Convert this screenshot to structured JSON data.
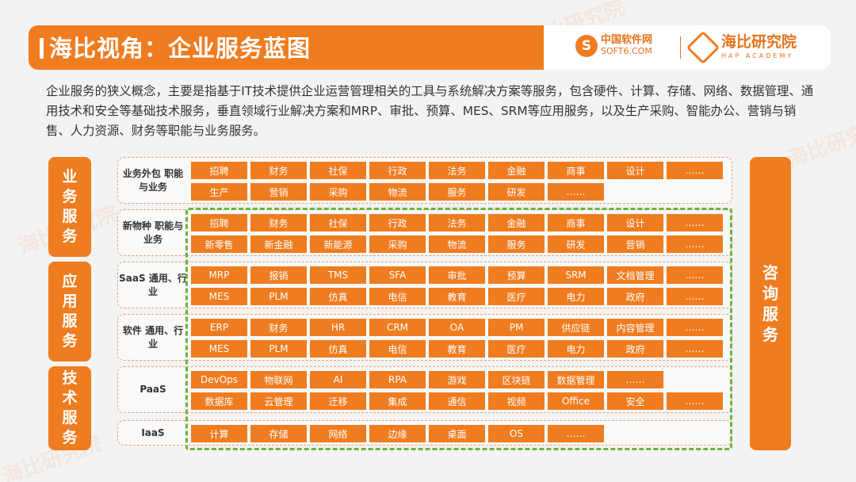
{
  "header": {
    "title": "海比视角：企业服务蓝图",
    "logo1_cn": "中国软件网",
    "logo1_en": "SOFT6.COM",
    "logo2_cn": "海比研究院",
    "logo2_en": "HAP ACADEMY"
  },
  "watermark": "海比研究院",
  "intro": "企业服务的狭义概念，主要是指基于IT技术提供企业运营管理相关的工具与系统解决方案等服务，包含硬件、计算、存储、网络、数据管理、通用技术和安全等基础技术服务，垂直领域行业解决方案和MRP、审批、预算、MES、SRM等应用服务，以及生产采购、智能办公、营销与销售、人力资源、财务等职能与业务服务。",
  "sidebars": [
    {
      "label": "业务服务"
    },
    {
      "label": "应用服务"
    },
    {
      "label": "技术服务"
    }
  ],
  "right_sidebar": "咨询服务",
  "rows": [
    {
      "label": "业务外包 职能与业务",
      "lines": [
        [
          "招聘",
          "财务",
          "社保",
          "行政",
          "法务",
          "金融",
          "商事",
          "设计",
          "……"
        ],
        [
          "生产",
          "营销",
          "采购",
          "物流",
          "服务",
          "研发",
          "……"
        ]
      ]
    },
    {
      "label": "新物种 职能与业务",
      "lines": [
        [
          "招聘",
          "财务",
          "社保",
          "行政",
          "法务",
          "金融",
          "商事",
          "设计",
          "……"
        ],
        [
          "新零售",
          "新金融",
          "新能源",
          "采购",
          "物流",
          "服务",
          "研发",
          "营销",
          "……"
        ]
      ]
    },
    {
      "label": "SaaS 通用、行业",
      "lines": [
        [
          "MRP",
          "报销",
          "TMS",
          "SFA",
          "审批",
          "预算",
          "SRM",
          "文档管理",
          "……"
        ],
        [
          "MES",
          "PLM",
          "仿真",
          "电信",
          "教育",
          "医疗",
          "电力",
          "政府",
          "……"
        ]
      ]
    },
    {
      "label": "软件 通用、行业",
      "lines": [
        [
          "ERP",
          "财务",
          "HR",
          "CRM",
          "OA",
          "PM",
          "供应链",
          "内容管理",
          "……"
        ],
        [
          "MES",
          "PLM",
          "仿真",
          "电信",
          "教育",
          "医疗",
          "电力",
          "政府",
          "……"
        ]
      ]
    },
    {
      "label": "PaaS",
      "lines": [
        [
          "DevOps",
          "物联网",
          "AI",
          "RPA",
          "游戏",
          "区块链",
          "数据管理",
          "……"
        ],
        [
          "数据库",
          "云管理",
          "迁移",
          "集成",
          "通信",
          "视频",
          "Office",
          "安全",
          "……"
        ]
      ]
    },
    {
      "label": "IaaS",
      "lines": [
        [
          "计算",
          "存储",
          "网络",
          "边缘",
          "桌面",
          "OS",
          "……"
        ]
      ]
    }
  ]
}
